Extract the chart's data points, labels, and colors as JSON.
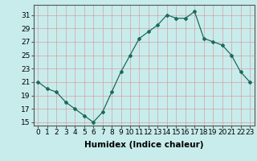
{
  "x": [
    0,
    1,
    2,
    3,
    4,
    5,
    6,
    7,
    8,
    9,
    10,
    11,
    12,
    13,
    14,
    15,
    16,
    17,
    18,
    19,
    20,
    21,
    22,
    23
  ],
  "y": [
    21,
    20,
    19.5,
    18,
    17,
    16,
    15,
    16.5,
    19.5,
    22.5,
    25,
    27.5,
    28.5,
    29.5,
    31,
    30.5,
    30.5,
    31.5,
    27.5,
    27,
    26.5,
    25,
    22.5,
    21
  ],
  "xlabel": "Humidex (Indice chaleur)",
  "ylim": [
    14.5,
    32.5
  ],
  "xlim": [
    -0.5,
    23.5
  ],
  "yticks": [
    15,
    17,
    19,
    21,
    23,
    25,
    27,
    29,
    31
  ],
  "xticks": [
    0,
    1,
    2,
    3,
    4,
    5,
    6,
    7,
    8,
    9,
    10,
    11,
    12,
    13,
    14,
    15,
    16,
    17,
    18,
    19,
    20,
    21,
    22,
    23
  ],
  "line_color": "#1a6b5a",
  "marker": "D",
  "marker_size": 2.0,
  "bg_color": "#c8ecec",
  "grid_color": "#aed4d4",
  "xlabel_fontsize": 7.5,
  "tick_fontsize": 6.5
}
